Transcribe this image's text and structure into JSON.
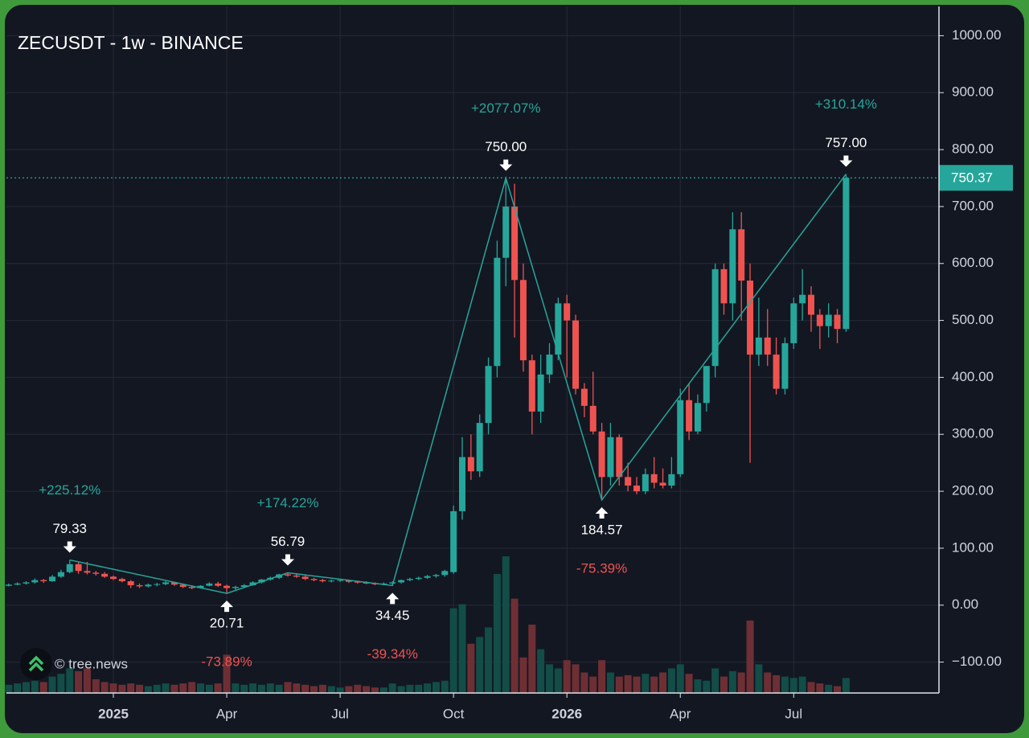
{
  "chart_data": {
    "type": "candlestick",
    "title": "ZECUSDT - 1w - BINANCE",
    "watermark": "© tree.news",
    "categories": [
      null,
      null,
      null,
      null,
      null,
      null,
      null,
      null,
      null,
      null,
      null,
      null,
      "2025",
      null,
      null,
      null,
      null,
      null,
      null,
      null,
      null,
      null,
      null,
      null,
      null,
      "Apr",
      null,
      null,
      null,
      null,
      null,
      null,
      null,
      null,
      null,
      null,
      null,
      null,
      "Jul",
      null,
      null,
      null,
      null,
      null,
      null,
      null,
      null,
      null,
      null,
      null,
      null,
      "Oct",
      null,
      null,
      null,
      null,
      null,
      null,
      null,
      null,
      null,
      null,
      null,
      null,
      "2026",
      null,
      null,
      null,
      null,
      null,
      null,
      null,
      null,
      null,
      null,
      null,
      null,
      "Apr",
      null,
      null,
      null,
      null,
      null,
      null,
      null,
      null,
      null,
      null,
      null,
      null,
      "Jul",
      null,
      null,
      null,
      null,
      null,
      null
    ],
    "ohlc": [
      [
        34,
        38,
        33,
        36
      ],
      [
        36,
        40,
        35,
        38
      ],
      [
        38,
        42,
        36,
        40
      ],
      [
        40,
        47,
        38,
        44
      ],
      [
        44,
        46,
        39,
        42
      ],
      [
        42,
        53,
        41,
        50
      ],
      [
        50,
        62,
        48,
        58
      ],
      [
        58,
        79.33,
        56,
        72
      ],
      [
        72,
        75,
        55,
        60
      ],
      [
        60,
        76,
        54,
        57
      ],
      [
        57,
        60,
        52,
        55
      ],
      [
        55,
        58,
        48,
        50
      ],
      [
        50,
        52,
        44,
        46
      ],
      [
        46,
        48,
        40,
        42
      ],
      [
        42,
        44,
        30,
        35
      ],
      [
        35,
        38,
        30,
        33
      ],
      [
        33,
        38,
        31,
        36
      ],
      [
        36,
        39,
        33,
        37
      ],
      [
        37,
        42,
        35,
        40
      ],
      [
        40,
        41,
        34,
        36
      ],
      [
        36,
        38,
        30,
        32
      ],
      [
        32,
        35,
        28,
        30
      ],
      [
        30,
        35,
        29,
        34
      ],
      [
        34,
        40,
        33,
        38
      ],
      [
        38,
        41,
        32,
        34
      ],
      [
        34,
        36,
        20.71,
        30
      ],
      [
        30,
        34,
        27,
        32
      ],
      [
        32,
        37,
        30,
        35
      ],
      [
        35,
        42,
        34,
        40
      ],
      [
        40,
        46,
        38,
        45
      ],
      [
        45,
        50,
        43,
        48
      ],
      [
        48,
        55,
        46,
        54
      ],
      [
        54,
        56.79,
        50,
        52
      ],
      [
        52,
        55,
        48,
        50
      ],
      [
        50,
        52,
        44,
        46
      ],
      [
        46,
        48,
        42,
        44
      ],
      [
        44,
        46,
        40,
        42
      ],
      [
        42,
        45,
        40,
        43
      ],
      [
        43,
        46,
        41,
        44
      ],
      [
        44,
        45,
        39,
        41
      ],
      [
        41,
        43,
        38,
        40
      ],
      [
        40,
        42,
        37,
        38
      ],
      [
        38,
        40,
        35,
        37
      ],
      [
        37,
        40,
        35,
        38
      ],
      [
        38,
        42,
        34.45,
        40
      ],
      [
        40,
        45,
        38,
        44
      ],
      [
        44,
        48,
        42,
        46
      ],
      [
        46,
        50,
        44,
        48
      ],
      [
        48,
        53,
        46,
        51
      ],
      [
        51,
        55,
        48,
        53
      ],
      [
        53,
        62,
        50,
        60
      ],
      [
        58,
        175,
        55,
        165
      ],
      [
        165,
        295,
        150,
        260
      ],
      [
        260,
        300,
        220,
        235
      ],
      [
        235,
        335,
        225,
        320
      ],
      [
        320,
        435,
        300,
        420
      ],
      [
        420,
        640,
        400,
        610
      ],
      [
        610,
        750,
        560,
        700
      ],
      [
        700,
        740,
        470,
        571
      ],
      [
        571,
        600,
        410,
        430
      ],
      [
        430,
        440,
        300,
        340
      ],
      [
        340,
        440,
        320,
        405
      ],
      [
        405,
        460,
        390,
        440
      ],
      [
        440,
        540,
        430,
        530
      ],
      [
        530,
        545,
        400,
        500
      ],
      [
        500,
        510,
        370,
        380
      ],
      [
        380,
        390,
        330,
        350
      ],
      [
        350,
        410,
        300,
        305
      ],
      [
        305,
        320,
        184.57,
        225
      ],
      [
        225,
        320,
        210,
        295
      ],
      [
        295,
        300,
        210,
        225
      ],
      [
        225,
        250,
        200,
        210
      ],
      [
        210,
        225,
        195,
        200
      ],
      [
        200,
        240,
        195,
        230
      ],
      [
        230,
        260,
        205,
        215
      ],
      [
        215,
        240,
        205,
        210
      ],
      [
        210,
        260,
        205,
        230
      ],
      [
        230,
        380,
        225,
        360
      ],
      [
        360,
        390,
        290,
        305
      ],
      [
        305,
        370,
        300,
        355
      ],
      [
        355,
        420,
        340,
        420
      ],
      [
        420,
        600,
        400,
        590
      ],
      [
        590,
        600,
        510,
        530
      ],
      [
        530,
        690,
        500,
        660
      ],
      [
        660,
        690,
        500,
        570
      ],
      [
        570,
        600,
        250,
        440
      ],
      [
        440,
        540,
        420,
        470
      ],
      [
        470,
        520,
        420,
        440
      ],
      [
        440,
        470,
        370,
        380
      ],
      [
        380,
        470,
        370,
        460
      ],
      [
        460,
        540,
        450,
        530
      ],
      [
        530,
        590,
        500,
        545
      ],
      [
        545,
        560,
        480,
        510
      ],
      [
        510,
        520,
        450,
        490
      ],
      [
        490,
        530,
        470,
        510
      ],
      [
        510,
        520,
        460,
        485
      ],
      [
        485,
        757,
        480,
        750.37
      ]
    ],
    "volume": [
      6,
      7,
      8,
      9,
      8,
      12,
      14,
      18,
      16,
      18,
      10,
      8,
      7,
      6,
      7,
      6,
      5,
      6,
      7,
      6,
      7,
      8,
      7,
      6,
      7,
      28,
      7,
      6,
      7,
      6,
      7,
      6,
      8,
      7,
      6,
      5,
      6,
      5,
      4,
      5,
      6,
      5,
      4,
      4,
      7,
      5,
      6,
      6,
      7,
      8,
      9,
      62,
      65,
      36,
      41,
      48,
      87,
      100,
      69,
      26,
      50,
      32,
      21,
      18,
      24,
      21,
      15,
      12,
      24,
      15,
      12,
      13,
      12,
      14,
      12,
      15,
      18,
      21,
      14,
      10,
      9,
      18,
      12,
      16,
      15,
      53,
      21,
      15,
      13,
      12,
      11,
      12,
      8,
      7,
      6,
      5,
      11
    ],
    "vlim": [
      0,
      100
    ],
    "up_color": "#26a69a",
    "down_color": "#ef5350",
    "up_volume_color": "#124d48",
    "down_volume_color": "#6e2f34",
    "ylim": [
      -150,
      1050
    ],
    "yticks": [
      {
        "value": -100,
        "label": "−100.00"
      },
      {
        "value": 0,
        "label": "0.00"
      },
      {
        "value": 100,
        "label": "100.00"
      },
      {
        "value": 200,
        "label": "200.00"
      },
      {
        "value": 300,
        "label": "300.00"
      },
      {
        "value": 400,
        "label": "400.00"
      },
      {
        "value": 500,
        "label": "500.00"
      },
      {
        "value": 600,
        "label": "600.00"
      },
      {
        "value": 700,
        "label": "700.00"
      },
      {
        "value": 800,
        "label": "800.00"
      },
      {
        "value": 900,
        "label": "900.00"
      },
      {
        "value": 1000,
        "label": "1000.00"
      }
    ],
    "grid": true,
    "last_price": 750.37,
    "pivot_index": [
      7,
      25,
      32,
      44,
      57,
      68,
      96
    ],
    "pivots": [
      79.33,
      20.71,
      56.79,
      34.45,
      {
        "value": 750,
        "label": "750.00"
      },
      184.57,
      {
        "value": 757,
        "label": "757.00"
      }
    ],
    "pivot_changes": [
      "+225.12%",
      "-73.89%",
      "+174.22%",
      "-39.34%",
      "+2077.07%",
      "-75.39%",
      "+310.14%"
    ],
    "line_color": "#26a69a"
  }
}
